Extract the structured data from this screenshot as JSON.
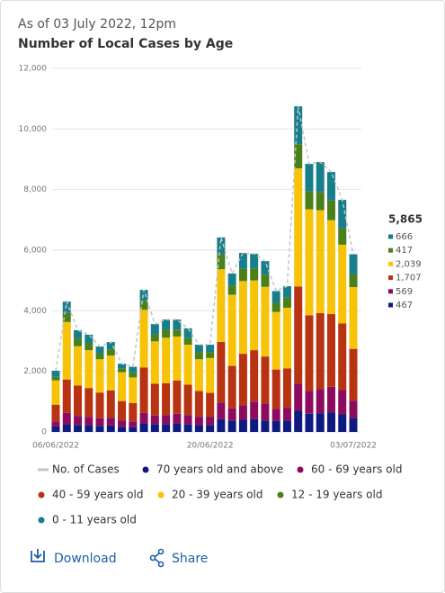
{
  "chart_data": {
    "type": "bar",
    "stacked": true,
    "subtitle": "As of 03 July 2022, 12pm",
    "title": "Number of Local Cases by Age",
    "categories": [
      "06/06/2022",
      null,
      null,
      null,
      null,
      null,
      null,
      null,
      null,
      null,
      null,
      null,
      null,
      null,
      "20/06/2022",
      null,
      null,
      null,
      null,
      null,
      null,
      null,
      null,
      null,
      null,
      null,
      null,
      "03/07/2022"
    ],
    "ylim": [
      0,
      12000
    ],
    "yticks": [
      0,
      {
        "value": 2000,
        "label": "2,000"
      },
      {
        "value": 4000,
        "label": "4,000"
      },
      {
        "value": 6000,
        "label": "6,000"
      },
      {
        "value": 8000,
        "label": "8,000"
      },
      {
        "value": 10000,
        "label": "10,000"
      },
      {
        "value": 12000,
        "label": "12,000"
      }
    ],
    "grid": true,
    "series": [
      {
        "name": "No. of Cases",
        "type": "line",
        "color": "#c4c4c4",
        "latest_label": "5,865",
        "values": [
          2020,
          4300,
          3360,
          3210,
          2820,
          2970,
          2250,
          2150,
          4690,
          3560,
          3710,
          3710,
          3420,
          2880,
          2880,
          6420,
          5230,
          5910,
          5880,
          5640,
          4650,
          4810,
          10750,
          8850,
          8910,
          8580,
          7660,
          5865
        ]
      },
      {
        "name": "70 years old and above",
        "color": "#0f1a80",
        "latest_label": "467",
        "values": [
          180,
          250,
          230,
          220,
          200,
          210,
          170,
          160,
          280,
          260,
          260,
          280,
          260,
          220,
          230,
          420,
          380,
          400,
          420,
          380,
          360,
          380,
          700,
          600,
          620,
          640,
          580,
          467
        ]
      },
      {
        "name": "60 - 69 years old",
        "color": "#8c0b5f",
        "latest_label": "569",
        "values": [
          170,
          380,
          300,
          280,
          250,
          260,
          200,
          190,
          350,
          280,
          300,
          320,
          300,
          280,
          260,
          550,
          400,
          480,
          580,
          560,
          400,
          420,
          900,
          750,
          800,
          850,
          800,
          569
        ]
      },
      {
        "name": "40 - 59 years old",
        "color": "#b73312",
        "latest_label": "1,707",
        "values": [
          550,
          1100,
          1000,
          950,
          850,
          900,
          650,
          600,
          1500,
          1050,
          1050,
          1100,
          1000,
          850,
          800,
          2000,
          1400,
          1700,
          1700,
          1550,
          1300,
          1300,
          3200,
          2500,
          2500,
          2400,
          2200,
          1707
        ]
      },
      {
        "name": "20 - 39 years old",
        "color": "#f6c308",
        "latest_label": "2,039",
        "values": [
          800,
          1900,
          1300,
          1250,
          1100,
          1150,
          950,
          850,
          1900,
          1400,
          1500,
          1450,
          1320,
          1050,
          1150,
          2400,
          2350,
          2400,
          2300,
          2300,
          1900,
          2000,
          3900,
          3500,
          3400,
          3100,
          2600,
          2039
        ]
      },
      {
        "name": "12 - 19 years old",
        "color": "#4b7f1a",
        "latest_label": "417",
        "values": [
          120,
          300,
          250,
          240,
          200,
          210,
          130,
          170,
          300,
          230,
          250,
          230,
          220,
          230,
          200,
          500,
          300,
          400,
          400,
          400,
          300,
          330,
          800,
          600,
          600,
          650,
          550,
          417
        ]
      },
      {
        "name": "0 - 11 years old",
        "color": "#177f8b",
        "latest_label": "666",
        "values": [
          200,
          370,
          280,
          270,
          220,
          240,
          150,
          180,
          360,
          340,
          350,
          330,
          320,
          250,
          240,
          550,
          400,
          530,
          480,
          450,
          390,
          380,
          1250,
          900,
          990,
          940,
          930,
          666
        ]
      }
    ],
    "actions": [
      "Download",
      "Share"
    ]
  }
}
